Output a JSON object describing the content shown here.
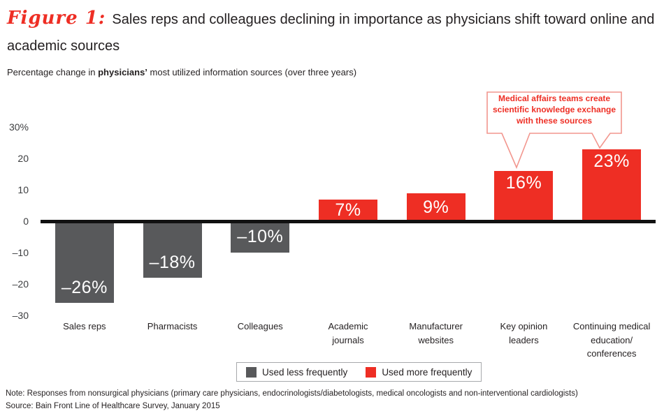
{
  "figure": {
    "label": "Figure 1:",
    "title_line1": "Sales reps and colleagues declining in importance as physicians shift toward online and",
    "title_line2": "academic sources"
  },
  "subtitle": {
    "prefix": "Percentage change in ",
    "bold": "physicians’",
    "suffix": " most utilized information sources (over three years)"
  },
  "chart_data": {
    "type": "bar",
    "categories": [
      "Sales reps",
      "Pharmacists",
      "Colleagues",
      "Academic\njournals",
      "Manufacturer\nwebsites",
      "Key opinion\nleaders",
      "Continuing medical\neducation/\nconferences"
    ],
    "values": [
      -26,
      -18,
      -10,
      7,
      9,
      16,
      23
    ],
    "value_labels": [
      "–26%",
      "–18%",
      "–10%",
      "7%",
      "9%",
      "16%",
      "23%"
    ],
    "colors": {
      "negative": "#58595b",
      "positive": "#ee2e24"
    },
    "y_ticks": [
      {
        "label": "30%",
        "value": 30
      },
      {
        "label": "20",
        "value": 20
      },
      {
        "label": "10",
        "value": 10
      },
      {
        "label": "0",
        "value": 0
      },
      {
        "label": "–10",
        "value": -10
      },
      {
        "label": "–20",
        "value": -20
      },
      {
        "label": "–30",
        "value": -30
      }
    ],
    "ylim": [
      -30,
      30
    ],
    "grid": false,
    "baseline_color": "#111111",
    "annotation": "Medical affairs teams create\nscientific knowledge exchange\nwith these sources",
    "annotation_targets": [
      "Key opinion leaders",
      "Continuing medical education/conferences"
    ],
    "legend_position": "bottom"
  },
  "legend": {
    "items": [
      {
        "label": "Used less frequently",
        "color": "#58595b"
      },
      {
        "label": "Used more frequently",
        "color": "#ee2e24"
      }
    ]
  },
  "footer": {
    "note": "Note: Responses from nonsurgical physicians (primary care physicians, endocrinologists/diabetologists, medical oncologists and non-interventional cardiologists)",
    "source": "Source: Bain Front Line of Healthcare Survey, January 2015"
  }
}
